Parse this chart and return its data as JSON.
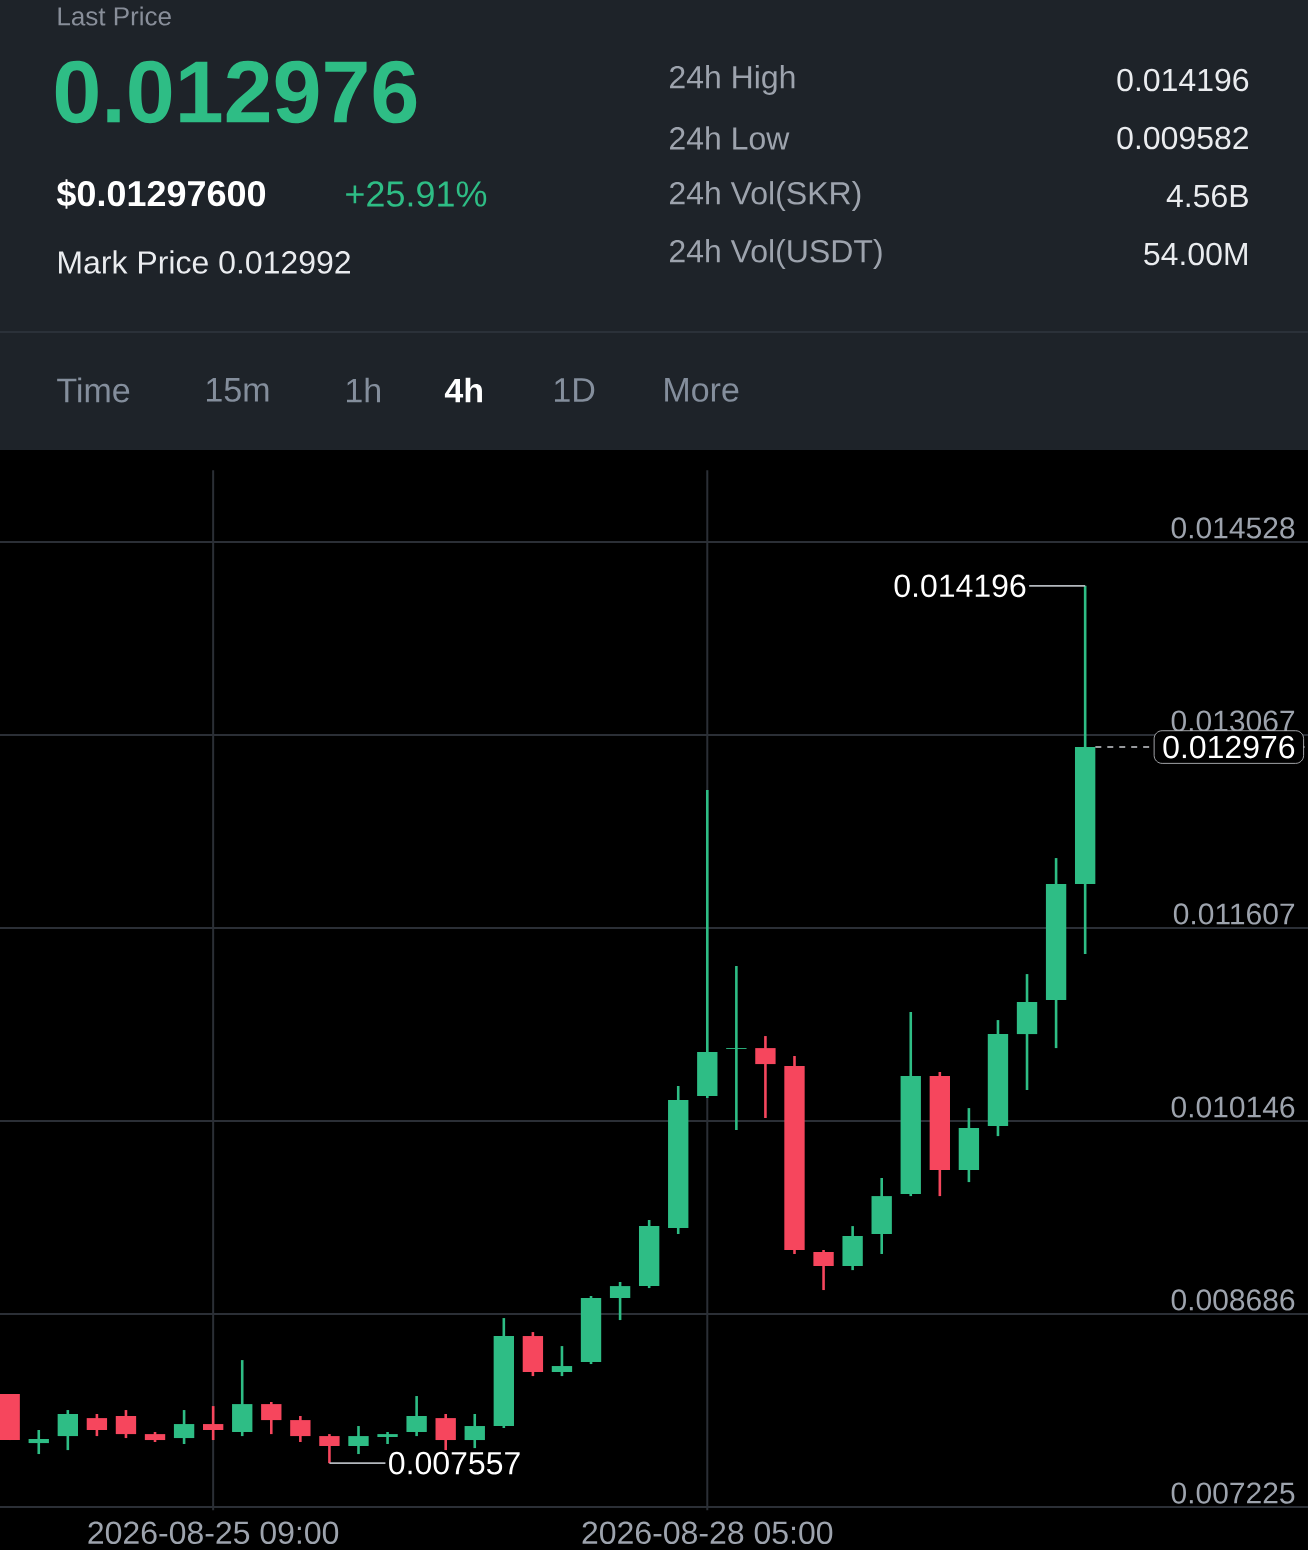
{
  "chart_data": {
    "type": "candlestick",
    "x": [
      "2026-08-24T05:00",
      "2026-08-24T09:00",
      "2026-08-24T13:00",
      "2026-08-24T17:00",
      "2026-08-24T21:00",
      "2026-08-25T01:00",
      "2026-08-25T05:00",
      "2026-08-25T09:00",
      "2026-08-25T13:00",
      "2026-08-25T17:00",
      "2026-08-25T21:00",
      "2026-08-26T01:00",
      "2026-08-26T05:00",
      "2026-08-26T09:00",
      "2026-08-26T13:00",
      "2026-08-26T17:00",
      "2026-08-26T21:00",
      "2026-08-27T01:00",
      "2026-08-27T05:00",
      "2026-08-27T09:00",
      "2026-08-27T13:00",
      "2026-08-27T17:00",
      "2026-08-27T21:00",
      "2026-08-28T01:00",
      "2026-08-28T05:00",
      "2026-08-28T09:00",
      "2026-08-28T13:00",
      "2026-08-28T17:00",
      "2026-08-28T21:00",
      "2026-08-29T01:00",
      "2026-08-29T05:00",
      "2026-08-29T09:00",
      "2026-08-29T13:00",
      "2026-08-29T17:00",
      "2026-08-29T21:00",
      "2026-08-30T01:00",
      "2026-08-30T05:00",
      "2026-08-30T09:00"
    ],
    "ohlc": [
      [
        0.00808,
        0.00808,
        0.007732,
        0.007732
      ],
      [
        0.007709,
        0.007808,
        0.007626,
        0.00774
      ],
      [
        0.007762,
        0.007959,
        0.007656,
        0.007929
      ],
      [
        0.007898,
        0.007929,
        0.007762,
        0.007808
      ],
      [
        0.007914,
        0.007959,
        0.007747,
        0.007777
      ],
      [
        0.007777,
        0.007793,
        0.007717,
        0.007732
      ],
      [
        0.007747,
        0.007959,
        0.007702,
        0.007853
      ],
      [
        0.007853,
        0.007989,
        0.007732,
        0.007808
      ],
      [
        0.007793,
        0.008337,
        0.007762,
        0.008004
      ],
      [
        0.008004,
        0.00802,
        0.007777,
        0.007883
      ],
      [
        0.007883,
        0.007914,
        0.007717,
        0.007762
      ],
      [
        0.007762,
        0.007777,
        0.007557,
        0.007687
      ],
      [
        0.007687,
        0.007838,
        0.007626,
        0.007762
      ],
      [
        0.007755,
        0.007793,
        0.007702,
        0.007777
      ],
      [
        0.007793,
        0.008065,
        0.007762,
        0.007914
      ],
      [
        0.007898,
        0.007929,
        0.007656,
        0.007732
      ],
      [
        0.007732,
        0.007929,
        0.007671,
        0.007838
      ],
      [
        0.007838,
        0.008655,
        0.007823,
        0.008519
      ],
      [
        0.008519,
        0.008549,
        0.008216,
        0.008247
      ],
      [
        0.008247,
        0.008443,
        0.008216,
        0.008292
      ],
      [
        0.008322,
        0.008822,
        0.008307,
        0.008807
      ],
      [
        0.008807,
        0.008928,
        0.00864,
        0.008897
      ],
      [
        0.008897,
        0.009397,
        0.008882,
        0.009351
      ],
      [
        0.009336,
        0.010411,
        0.009291,
        0.010305
      ],
      [
        0.010335,
        0.012651,
        0.01032,
        0.010668
      ],
      [
        0.010691,
        0.011319,
        0.010078,
        0.010698
      ],
      [
        0.010698,
        0.010789,
        0.010169,
        0.010577
      ],
      [
        0.010562,
        0.010638,
        0.00914,
        0.00917
      ],
      [
        0.009155,
        0.00917,
        0.008867,
        0.009049
      ],
      [
        0.009049,
        0.009351,
        0.009018,
        0.009276
      ],
      [
        0.009291,
        0.009715,
        0.00914,
        0.009578
      ],
      [
        0.009594,
        0.010971,
        0.009578,
        0.010487
      ],
      [
        0.010487,
        0.010517,
        0.009578,
        0.009775
      ],
      [
        0.009775,
        0.010244,
        0.009684,
        0.010093
      ],
      [
        0.010108,
        0.01091,
        0.010032,
        0.010804
      ],
      [
        0.010804,
        0.011258,
        0.010381,
        0.011047
      ],
      [
        0.011062,
        0.012136,
        0.010698,
        0.011939
      ],
      [
        0.011939,
        0.014196,
        0.01141,
        0.012976
      ]
    ],
    "colors": [
      "#f6465d",
      "#2ebd85",
      "#2ebd85",
      "#f6465d",
      "#f6465d",
      "#f6465d",
      "#2ebd85",
      "#f6465d",
      "#2ebd85",
      "#f6465d",
      "#f6465d",
      "#f6465d",
      "#2ebd85",
      "#2ebd85",
      "#2ebd85",
      "#f6465d",
      "#2ebd85",
      "#2ebd85",
      "#f6465d",
      "#2ebd85",
      "#2ebd85",
      "#2ebd85",
      "#2ebd85",
      "#2ebd85",
      "#2ebd85",
      "#2ebd85",
      "#f6465d",
      "#f6465d",
      "#f6465d",
      "#2ebd85",
      "#2ebd85",
      "#2ebd85",
      "#f6465d",
      "#2ebd85",
      "#2ebd85",
      "#2ebd85",
      "#2ebd85",
      "#2ebd85"
    ],
    "xlim": [
      "2026-08-24T03:40",
      "2026-08-31T15:40"
    ],
    "xticks": [
      {
        "value": "2026-08-25T09:00",
        "label": "2026-08-25 09:00"
      },
      {
        "value": "2026-08-28T05:00",
        "label": "2026-08-28 05:00"
      }
    ],
    "ylim": [
      0.0072,
      0.01507
    ],
    "yticks": [
      0.007225,
      0.008686,
      0.010146,
      0.011607,
      0.013067,
      0.014528
    ],
    "grid": true,
    "ref_lines": [
      {
        "axis": "y",
        "value": 0.012976,
        "label": "0.012976",
        "color": "#c9ccd1",
        "line_style": "dashed"
      }
    ],
    "annotations": [
      "Last Price",
      "0.012976",
      "$0.01297600",
      "+25.91%",
      "Mark Price 0.012992",
      "24h High",
      "0.014196",
      "24h Low",
      "0.009582",
      "24h Vol(SKR)",
      "4.56B",
      "24h Vol(USDT)",
      "54.00M",
      "Time",
      "15m",
      "1h",
      "4h",
      "1D",
      "More",
      {
        "text": "0.014196",
        "x": "2026-08-30T09:00",
        "y": 0.014196
      },
      {
        "text": "0.007557",
        "x": "2026-08-26T01:00",
        "y": 0.007557
      }
    ]
  }
}
